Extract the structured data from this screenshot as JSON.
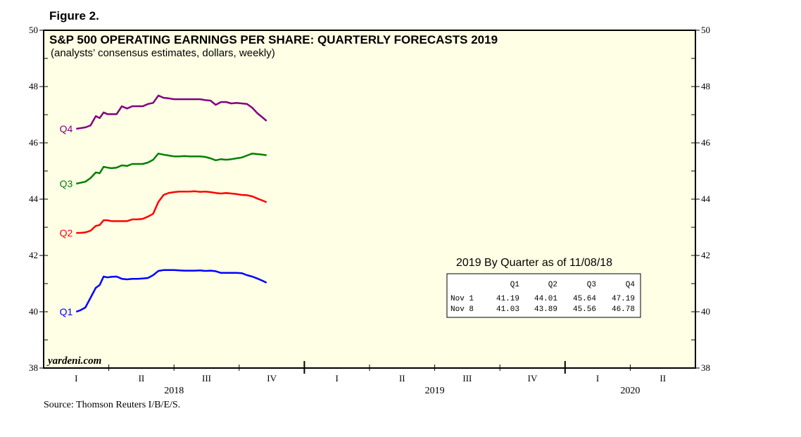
{
  "figure_label": "Figure 2.",
  "source": "Source: Thomson Reuters I/B/E/S.",
  "brand": "yardeni.com",
  "colors": {
    "plot_bg": "#ffffe5",
    "Q1": "#0000ff",
    "Q2": "#ff0000",
    "Q3": "#008000",
    "Q4": "#800080"
  },
  "chart_data": {
    "type": "line",
    "title": "S&P 500 OPERATING EARNINGS PER SHARE: QUARTERLY FORECASTS 2019",
    "subtitle": "(analysts’ consensus estimates, dollars, weekly)",
    "xlabel": "",
    "ylabel": "",
    "ylim": [
      38,
      50
    ],
    "yticks": [
      "38",
      "40",
      "42",
      "44",
      "46",
      "48",
      "50"
    ],
    "x_range": [
      2018.0,
      2020.5
    ],
    "x_quarter_labels": [
      "I",
      "II",
      "III",
      "IV",
      "I",
      "II",
      "III",
      "IV",
      "I",
      "II"
    ],
    "x_years": [
      "2018",
      "2019",
      "2020"
    ],
    "series": [
      {
        "name": "Q1",
        "x": [
          2018.125,
          2018.14,
          2018.16,
          2018.18,
          2018.2,
          2018.215,
          2018.23,
          2018.245,
          2018.26,
          2018.28,
          2018.3,
          2018.32,
          2018.34,
          2018.36,
          2018.38,
          2018.4,
          2018.42,
          2018.44,
          2018.46,
          2018.48,
          2018.5,
          2018.52,
          2018.54,
          2018.56,
          2018.58,
          2018.6,
          2018.62,
          2018.64,
          2018.66,
          2018.68,
          2018.7,
          2018.72,
          2018.74,
          2018.76,
          2018.78,
          2018.8,
          2018.82,
          2018.84,
          2018.855
        ],
        "values": [
          40.0,
          40.05,
          40.15,
          40.5,
          40.85,
          40.95,
          41.25,
          41.22,
          41.24,
          41.25,
          41.17,
          41.15,
          41.17,
          41.17,
          41.18,
          41.2,
          41.3,
          41.45,
          41.48,
          41.48,
          41.48,
          41.47,
          41.46,
          41.46,
          41.46,
          41.47,
          41.45,
          41.46,
          41.44,
          41.38,
          41.38,
          41.38,
          41.38,
          41.37,
          41.3,
          41.25,
          41.18,
          41.1,
          41.03
        ]
      },
      {
        "name": "Q2",
        "x": [
          2018.125,
          2018.14,
          2018.16,
          2018.18,
          2018.2,
          2018.215,
          2018.23,
          2018.245,
          2018.26,
          2018.28,
          2018.3,
          2018.32,
          2018.34,
          2018.36,
          2018.38,
          2018.4,
          2018.42,
          2018.44,
          2018.46,
          2018.48,
          2018.5,
          2018.52,
          2018.54,
          2018.56,
          2018.58,
          2018.6,
          2018.62,
          2018.64,
          2018.66,
          2018.68,
          2018.7,
          2018.72,
          2018.74,
          2018.76,
          2018.78,
          2018.8,
          2018.82,
          2018.84,
          2018.855
        ],
        "values": [
          42.8,
          42.8,
          42.82,
          42.88,
          43.05,
          43.08,
          43.25,
          43.25,
          43.22,
          43.22,
          43.22,
          43.22,
          43.28,
          43.28,
          43.3,
          43.38,
          43.48,
          43.9,
          44.15,
          44.22,
          44.25,
          44.27,
          44.27,
          44.27,
          44.28,
          44.26,
          44.27,
          44.25,
          44.22,
          44.2,
          44.22,
          44.2,
          44.18,
          44.15,
          44.14,
          44.1,
          44.02,
          43.95,
          43.89
        ]
      },
      {
        "name": "Q3",
        "x": [
          2018.125,
          2018.14,
          2018.16,
          2018.18,
          2018.2,
          2018.215,
          2018.23,
          2018.245,
          2018.26,
          2018.28,
          2018.3,
          2018.32,
          2018.34,
          2018.36,
          2018.38,
          2018.4,
          2018.42,
          2018.44,
          2018.46,
          2018.48,
          2018.5,
          2018.52,
          2018.54,
          2018.56,
          2018.58,
          2018.6,
          2018.62,
          2018.64,
          2018.66,
          2018.68,
          2018.7,
          2018.72,
          2018.74,
          2018.76,
          2018.78,
          2018.8,
          2018.82,
          2018.84,
          2018.855
        ],
        "values": [
          44.55,
          44.58,
          44.62,
          44.75,
          44.95,
          44.92,
          45.15,
          45.12,
          45.1,
          45.12,
          45.2,
          45.18,
          45.25,
          45.25,
          45.25,
          45.3,
          45.4,
          45.62,
          45.58,
          45.55,
          45.52,
          45.52,
          45.53,
          45.52,
          45.52,
          45.52,
          45.5,
          45.45,
          45.38,
          45.42,
          45.4,
          45.42,
          45.45,
          45.48,
          45.55,
          45.62,
          45.6,
          45.58,
          45.56
        ]
      },
      {
        "name": "Q4",
        "x": [
          2018.125,
          2018.14,
          2018.16,
          2018.18,
          2018.2,
          2018.215,
          2018.23,
          2018.245,
          2018.26,
          2018.28,
          2018.3,
          2018.32,
          2018.34,
          2018.36,
          2018.38,
          2018.4,
          2018.42,
          2018.44,
          2018.46,
          2018.48,
          2018.5,
          2018.52,
          2018.54,
          2018.56,
          2018.58,
          2018.6,
          2018.62,
          2018.64,
          2018.66,
          2018.68,
          2018.7,
          2018.72,
          2018.74,
          2018.76,
          2018.78,
          2018.8,
          2018.82,
          2018.84,
          2018.855
        ],
        "values": [
          46.5,
          46.52,
          46.55,
          46.62,
          46.95,
          46.88,
          47.08,
          47.02,
          47.02,
          47.02,
          47.3,
          47.22,
          47.3,
          47.3,
          47.3,
          47.38,
          47.42,
          47.68,
          47.6,
          47.58,
          47.55,
          47.55,
          47.55,
          47.55,
          47.55,
          47.55,
          47.52,
          47.5,
          47.35,
          47.45,
          47.45,
          47.4,
          47.42,
          47.4,
          47.38,
          47.25,
          47.05,
          46.9,
          46.78
        ]
      }
    ],
    "table": {
      "title": "2019 By Quarter as of 11/08/18",
      "columns": [
        "",
        "Q1",
        "Q2",
        "Q3",
        "Q4"
      ],
      "rows": [
        [
          "Nov  1",
          "41.19",
          "44.01",
          "45.64",
          "47.19"
        ],
        [
          "Nov  8",
          "41.03",
          "43.89",
          "45.56",
          "46.78"
        ]
      ]
    }
  }
}
